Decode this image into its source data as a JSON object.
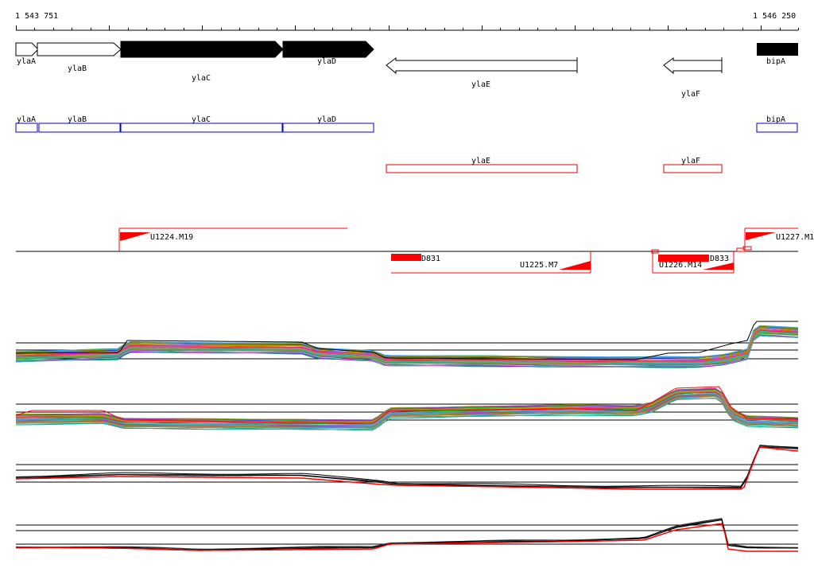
{
  "ruler": {
    "start_label": "1 543 751",
    "end_label": "1 546 250"
  },
  "genes_top": [
    {
      "name": "ylaA",
      "fill": "white",
      "strand": "+"
    },
    {
      "name": "ylaB",
      "fill": "white",
      "strand": "+"
    },
    {
      "name": "ylaC",
      "fill": "black",
      "strand": "+"
    },
    {
      "name": "ylaD",
      "fill": "black",
      "strand": "+"
    },
    {
      "name": "ylaE",
      "fill": "white",
      "strand": "-"
    },
    {
      "name": "ylaF",
      "fill": "white",
      "strand": "-"
    },
    {
      "name": "bipA",
      "fill": "black",
      "strand": "+"
    }
  ],
  "genes_forward_boxes": [
    "ylaA",
    "ylaB",
    "ylaC",
    "ylaD",
    "bipA"
  ],
  "genes_reverse_boxes": [
    "ylaE",
    "ylaF"
  ],
  "transcription_units": [
    {
      "label": "U1224.M19",
      "strand": "+"
    },
    {
      "label": "U1225.M7",
      "strand": "-"
    },
    {
      "label": "U1226.M14",
      "strand": "-"
    },
    {
      "label": "U1227.M1",
      "strand": "+"
    }
  ],
  "segments": [
    {
      "label": "D831"
    },
    {
      "label": "D833"
    }
  ],
  "colors": {
    "forward_box": "#0000cc",
    "reverse_box": "#dd0000",
    "feature_red": "#ff0000",
    "gene_black": "#000000",
    "profile_red": "#ff0000"
  }
}
